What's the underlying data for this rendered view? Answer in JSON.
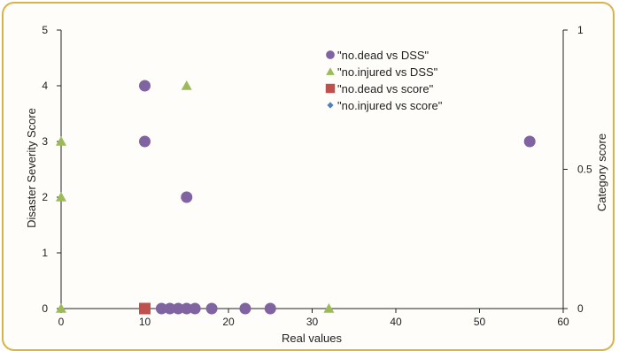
{
  "chart_data": {
    "type": "scatter",
    "xlabel": "Real values",
    "ylabel": "Disaster Severity Score",
    "y2label": "Category score",
    "xlim": [
      0,
      60
    ],
    "ylim": [
      0,
      5
    ],
    "y2lim": [
      0,
      1
    ],
    "x_ticks": [
      "0",
      "10",
      "20",
      "30",
      "40",
      "50",
      "60"
    ],
    "y_ticks": [
      "0",
      "1",
      "2",
      "3",
      "4",
      "5"
    ],
    "y2_ticks": [
      "0",
      "0.5",
      "1"
    ],
    "grid": false,
    "legend_position": "top-right",
    "series": [
      {
        "name": "\"no.dead vs DSS\"",
        "marker": "circle",
        "color": "#8064a2",
        "axis": "left",
        "points": [
          [
            10,
            4
          ],
          [
            10,
            3
          ],
          [
            15,
            2
          ],
          [
            56,
            3
          ],
          [
            12,
            0
          ],
          [
            13,
            0
          ],
          [
            14,
            0
          ],
          [
            15,
            0
          ],
          [
            16,
            0
          ],
          [
            18,
            0
          ],
          [
            22,
            0
          ],
          [
            25,
            0
          ]
        ]
      },
      {
        "name": "\"no.injured vs DSS\"",
        "marker": "triangle",
        "color": "#9bbb59",
        "axis": "left",
        "points": [
          [
            0,
            3
          ],
          [
            0,
            2
          ],
          [
            15,
            4
          ],
          [
            0,
            0
          ],
          [
            32,
            0
          ]
        ]
      },
      {
        "name": "\"no.dead vs score\"",
        "marker": "square",
        "color": "#c0504d",
        "axis": "right",
        "points": [
          [
            10,
            0
          ]
        ]
      },
      {
        "name": "\"no.injured vs score\"",
        "marker": "diamond",
        "color": "#4f81bd",
        "axis": "right",
        "points": [
          [
            15,
            0
          ]
        ]
      }
    ]
  }
}
